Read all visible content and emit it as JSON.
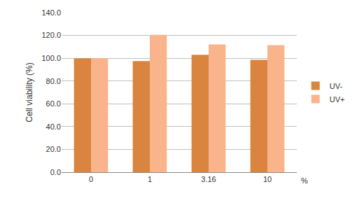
{
  "chart_data": {
    "type": "bar",
    "y_label": "Cell viability (%)",
    "x_label": "%",
    "categories": [
      "0",
      "1",
      "3.16",
      "10"
    ],
    "series": [
      {
        "name": "UV-",
        "color": "#d9843f",
        "values": [
          100,
          97.5,
          103,
          98.5
        ]
      },
      {
        "name": "UV+",
        "color": "#f9b48c",
        "values": [
          100,
          120.5,
          112,
          111.5
        ]
      }
    ],
    "ylim": [
      0,
      140
    ],
    "yticks": [
      {
        "value": 0,
        "label": "0.0"
      },
      {
        "value": 20,
        "label": "20.0"
      },
      {
        "value": 40,
        "label": "40.0"
      },
      {
        "value": 60,
        "label": "60.0"
      },
      {
        "value": 80,
        "label": "80.0"
      },
      {
        "value": 100,
        "label": "100.0"
      },
      {
        "value": 120,
        "label": "120.0"
      },
      {
        "value": 140,
        "label": "140.0"
      }
    ],
    "grid": true,
    "legend": "right"
  }
}
